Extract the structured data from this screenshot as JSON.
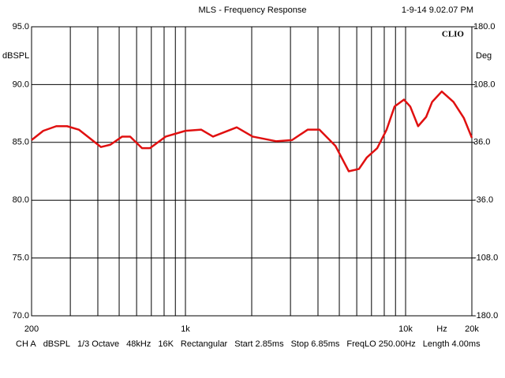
{
  "chart_data": {
    "type": "line",
    "title": "MLS - Frequency Response",
    "timestamp": "1-9-14 9.02.07 PM",
    "brand": "CLIO",
    "ylabel": "dBSPL",
    "y2label": "Deg",
    "xlabel": "Hz",
    "log_x": true,
    "grid": true,
    "xlim": [
      200,
      20000
    ],
    "xticks": [
      200,
      {
        "value": 300,
        "label": null
      },
      {
        "value": 400,
        "label": null
      },
      {
        "value": 500,
        "label": null
      },
      {
        "value": 600,
        "label": null
      },
      {
        "value": 700,
        "label": null
      },
      {
        "value": 800,
        "label": null
      },
      {
        "value": 900,
        "label": null
      },
      {
        "value": 1000,
        "label": "1k"
      },
      {
        "value": 2000,
        "label": null
      },
      {
        "value": 3000,
        "label": null
      },
      {
        "value": 4000,
        "label": null
      },
      {
        "value": 5000,
        "label": null
      },
      {
        "value": 6000,
        "label": null
      },
      {
        "value": 7000,
        "label": null
      },
      {
        "value": 8000,
        "label": null
      },
      {
        "value": 9000,
        "label": null
      },
      {
        "value": 10000,
        "label": "10k"
      },
      {
        "value": 20000,
        "label": "20k"
      }
    ],
    "ylim": [
      70,
      95
    ],
    "yticks": [
      {
        "value": 70,
        "label": "70.0"
      },
      {
        "value": 75,
        "label": "75.0"
      },
      {
        "value": 80,
        "label": "80.0"
      },
      {
        "value": 85,
        "label": "85.0"
      },
      {
        "value": 90,
        "label": "90.0"
      },
      {
        "value": 95,
        "label": "95.0"
      }
    ],
    "y2lim": [
      -180,
      180
    ],
    "y2ticks": [
      {
        "value": -180,
        "label": "-180.0"
      },
      {
        "value": -108,
        "label": "-108.0"
      },
      {
        "value": -36,
        "label": "-36.0"
      },
      {
        "value": 36,
        "label": "36.0"
      },
      {
        "value": 108,
        "label": "108.0"
      },
      {
        "value": 180,
        "label": "180.0"
      }
    ],
    "x": [
      200,
      226,
      259,
      290,
      328,
      371,
      413,
      456,
      516,
      561,
      635,
      690,
      813,
      1000,
      1180,
      1334,
      1710,
      2020,
      2580,
      3050,
      3590,
      4060,
      4800,
      5520,
      6140,
      6670,
      7430,
      8200,
      8910,
      9830,
      10500,
      11400,
      12400,
      13200,
      14600,
      16500,
      18400,
      20000
    ],
    "series": [
      {
        "color": "#e01010",
        "values": [
          85.2,
          86.0,
          86.4,
          86.4,
          86.1,
          85.3,
          84.6,
          84.8,
          85.5,
          85.5,
          84.5,
          84.5,
          85.5,
          86.0,
          86.1,
          85.5,
          86.3,
          85.5,
          85.1,
          85.2,
          86.1,
          86.1,
          84.7,
          82.5,
          82.7,
          83.7,
          84.5,
          86.1,
          88.1,
          88.7,
          88.1,
          86.4,
          87.2,
          88.5,
          89.4,
          88.5,
          87.1,
          85.4
        ]
      }
    ],
    "footer": [
      "CH A",
      "dBSPL",
      "1/3 Octave",
      "48kHz",
      "16K",
      "Rectangular",
      "Start 2.85ms",
      "Stop 6.85ms",
      "FreqLO 250.00Hz",
      "Length 4.00ms"
    ]
  }
}
